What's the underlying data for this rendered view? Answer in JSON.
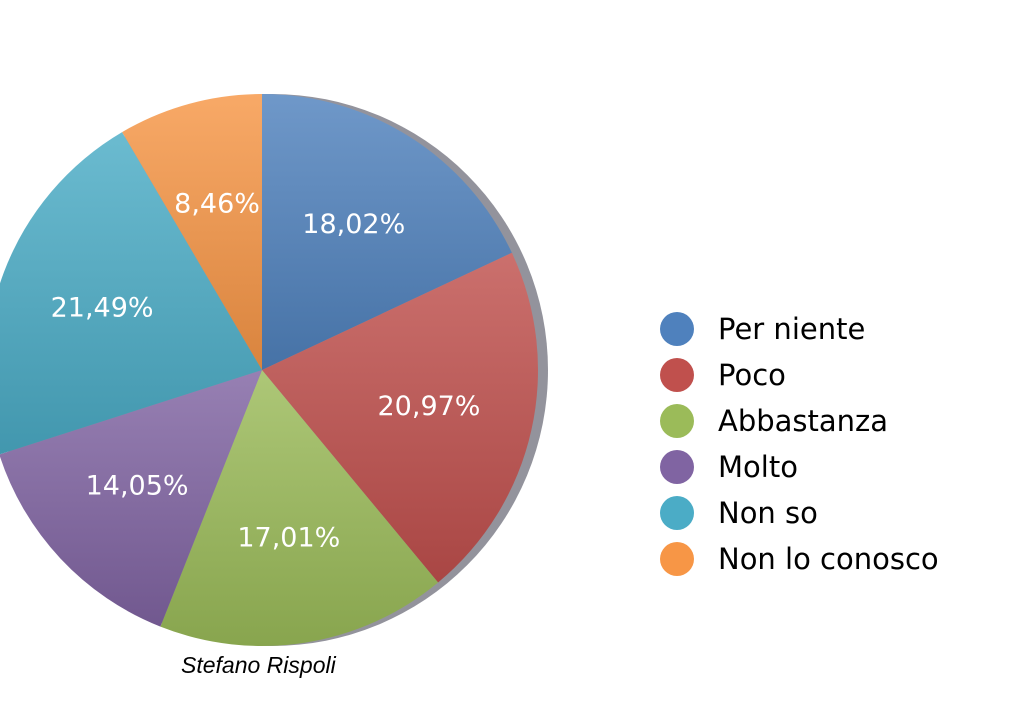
{
  "chart_data": {
    "type": "pie",
    "categories": [
      "Per niente",
      "Poco",
      "Abbastanza",
      "Molto",
      "Non so",
      "Non lo conosco"
    ],
    "values": [
      18.02,
      20.97,
      17.01,
      14.05,
      21.49,
      8.46
    ],
    "labels": [
      "18,02%",
      "20,97%",
      "17,01%",
      "14,05%",
      "21,49%",
      "8,46%"
    ],
    "colors": [
      "#4f81bd",
      "#c0504d",
      "#9bbb59",
      "#8064a2",
      "#4bacc6",
      "#f79646"
    ],
    "legend_position": "right"
  },
  "credit": "Stefano Rispoli"
}
